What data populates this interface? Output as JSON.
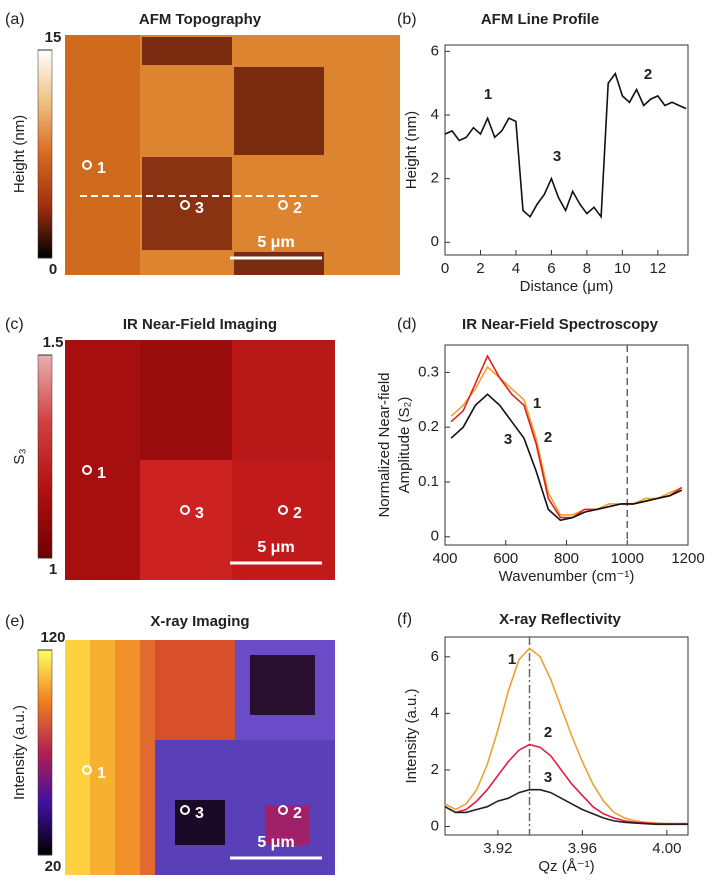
{
  "chart_data": [
    {
      "type": "image",
      "panel": "(a)",
      "title": "AFM Topography",
      "colorbar_label": "Height (nm)",
      "clim": [
        0,
        15
      ],
      "cticks": [
        0,
        15
      ],
      "colormap": [
        "#ffffff",
        "#f0c080",
        "#d86a20",
        "#a03010",
        "#000000"
      ],
      "markers": [
        "1",
        "3",
        "2"
      ],
      "scalebar": "5 μm",
      "profile_line": true
    },
    {
      "type": "line",
      "panel": "(b)",
      "title": "AFM Line Profile",
      "xlabel": "Distance (μm)",
      "ylabel": "Height (nm)",
      "x": [
        0,
        0.4,
        0.8,
        1.2,
        1.6,
        2.0,
        2.4,
        2.8,
        3.2,
        3.6,
        4.0,
        4.4,
        4.8,
        5.2,
        5.6,
        6.0,
        6.4,
        6.8,
        7.2,
        7.6,
        8.0,
        8.4,
        8.8,
        9.2,
        9.6,
        10.0,
        10.4,
        10.8,
        11.2,
        11.6,
        12.0,
        12.4,
        12.8,
        13.2,
        13.6
      ],
      "series": [
        {
          "color": "#111111",
          "values": [
            3.4,
            3.5,
            3.2,
            3.3,
            3.6,
            3.4,
            3.9,
            3.3,
            3.5,
            3.9,
            3.8,
            1.0,
            0.8,
            1.2,
            1.5,
            2.0,
            1.4,
            1.0,
            1.6,
            1.2,
            0.9,
            1.1,
            0.8,
            5.0,
            5.3,
            4.6,
            4.4,
            4.8,
            4.3,
            4.5,
            4.6,
            4.3,
            4.4,
            4.3,
            4.2
          ]
        }
      ],
      "annotations": [
        "1",
        "3",
        "2"
      ],
      "xlim": [
        0,
        13.7
      ],
      "xticks": [
        0,
        2,
        4,
        6,
        8,
        10,
        12
      ],
      "ylim": [
        -0.4,
        6.2
      ],
      "yticks": [
        0,
        2,
        4,
        6
      ]
    },
    {
      "type": "image",
      "panel": "(c)",
      "title": "IR Near-Field Imaging",
      "colorbar_label": "S₃",
      "clim": [
        1,
        1.5
      ],
      "cticks": [
        1,
        1.5
      ],
      "colormap": [
        "#e8b0b0",
        "#d04040",
        "#b01010",
        "#700000"
      ],
      "markers": [
        "1",
        "3",
        "2"
      ],
      "scalebar": "5 μm"
    },
    {
      "type": "line",
      "panel": "(d)",
      "title": "IR Near-Field Spectroscopy",
      "xlabel": "Wavenumber (cm⁻¹)",
      "ylabel": [
        "Normalized Near-field",
        "Amplitude (S₂)"
      ],
      "x": [
        420,
        460,
        500,
        540,
        580,
        620,
        660,
        700,
        740,
        780,
        820,
        860,
        900,
        940,
        980,
        1020,
        1060,
        1100,
        1140,
        1180
      ],
      "series": [
        {
          "name": "1",
          "color": "#f0a030",
          "values": [
            0.22,
            0.24,
            0.27,
            0.31,
            0.29,
            0.27,
            0.25,
            0.18,
            0.08,
            0.04,
            0.04,
            0.05,
            0.05,
            0.06,
            0.06,
            0.06,
            0.07,
            0.07,
            0.08,
            0.09
          ]
        },
        {
          "name": "2",
          "color": "#e02020",
          "values": [
            0.21,
            0.23,
            0.28,
            0.33,
            0.29,
            0.26,
            0.24,
            0.17,
            0.07,
            0.035,
            0.035,
            0.05,
            0.05,
            0.055,
            0.06,
            0.06,
            0.065,
            0.07,
            0.075,
            0.09
          ]
        },
        {
          "name": "3",
          "color": "#111111",
          "values": [
            0.18,
            0.2,
            0.24,
            0.26,
            0.24,
            0.21,
            0.18,
            0.12,
            0.05,
            0.03,
            0.035,
            0.045,
            0.05,
            0.055,
            0.06,
            0.06,
            0.065,
            0.07,
            0.075,
            0.085
          ]
        }
      ],
      "vline": 1000,
      "xlim": [
        400,
        1200
      ],
      "xticks": [
        400,
        600,
        800,
        1000,
        1200
      ],
      "ylim": [
        -0.015,
        0.35
      ],
      "yticks": [
        0,
        0.1,
        0.2,
        0.3
      ]
    },
    {
      "type": "image",
      "panel": "(e)",
      "title": "X-ray Imaging",
      "colorbar_label": "Intensity (a.u.)",
      "clim": [
        20,
        120
      ],
      "cticks": [
        20,
        120
      ],
      "colormap": [
        "#ffff60",
        "#f08020",
        "#b02050",
        "#4010a0",
        "#000000"
      ],
      "markers": [
        "1",
        "3",
        "2"
      ],
      "scalebar": "5 μm"
    },
    {
      "type": "line",
      "panel": "(f)",
      "title": "X-ray Reflectivity",
      "xlabel": "Qz (Å⁻¹)",
      "ylabel": "Intensity (a.u.)",
      "x": [
        3.895,
        3.9,
        3.905,
        3.91,
        3.915,
        3.92,
        3.925,
        3.93,
        3.935,
        3.94,
        3.945,
        3.95,
        3.955,
        3.96,
        3.965,
        3.97,
        3.975,
        3.98,
        3.985,
        3.99,
        3.995,
        4.0,
        4.005,
        4.01
      ],
      "series": [
        {
          "name": "1",
          "color": "#f0a030",
          "values": [
            0.8,
            0.6,
            0.8,
            1.3,
            2.2,
            3.4,
            4.8,
            5.9,
            6.3,
            6.0,
            5.2,
            4.2,
            3.2,
            2.3,
            1.5,
            0.9,
            0.5,
            0.3,
            0.2,
            0.15,
            0.12,
            0.1,
            0.1,
            0.1
          ]
        },
        {
          "name": "2",
          "color": "#e02040",
          "values": [
            0.7,
            0.5,
            0.6,
            0.9,
            1.3,
            1.8,
            2.3,
            2.7,
            2.9,
            2.8,
            2.5,
            2.0,
            1.5,
            1.1,
            0.7,
            0.45,
            0.3,
            0.2,
            0.15,
            0.12,
            0.1,
            0.1,
            0.1,
            0.1
          ]
        },
        {
          "name": "3",
          "color": "#222222",
          "values": [
            0.7,
            0.5,
            0.5,
            0.6,
            0.7,
            0.9,
            1.0,
            1.2,
            1.3,
            1.3,
            1.2,
            1.0,
            0.8,
            0.6,
            0.45,
            0.3,
            0.2,
            0.15,
            0.12,
            0.1,
            0.08,
            0.08,
            0.08,
            0.08
          ]
        }
      ],
      "vline": 3.935,
      "xlim": [
        3.895,
        4.01
      ],
      "xticks": [
        3.92,
        3.96,
        {
          "value": 4,
          "label": "4.00"
        }
      ],
      "ylim": [
        -0.3,
        6.7
      ],
      "yticks": [
        0,
        2,
        4,
        6
      ]
    }
  ]
}
